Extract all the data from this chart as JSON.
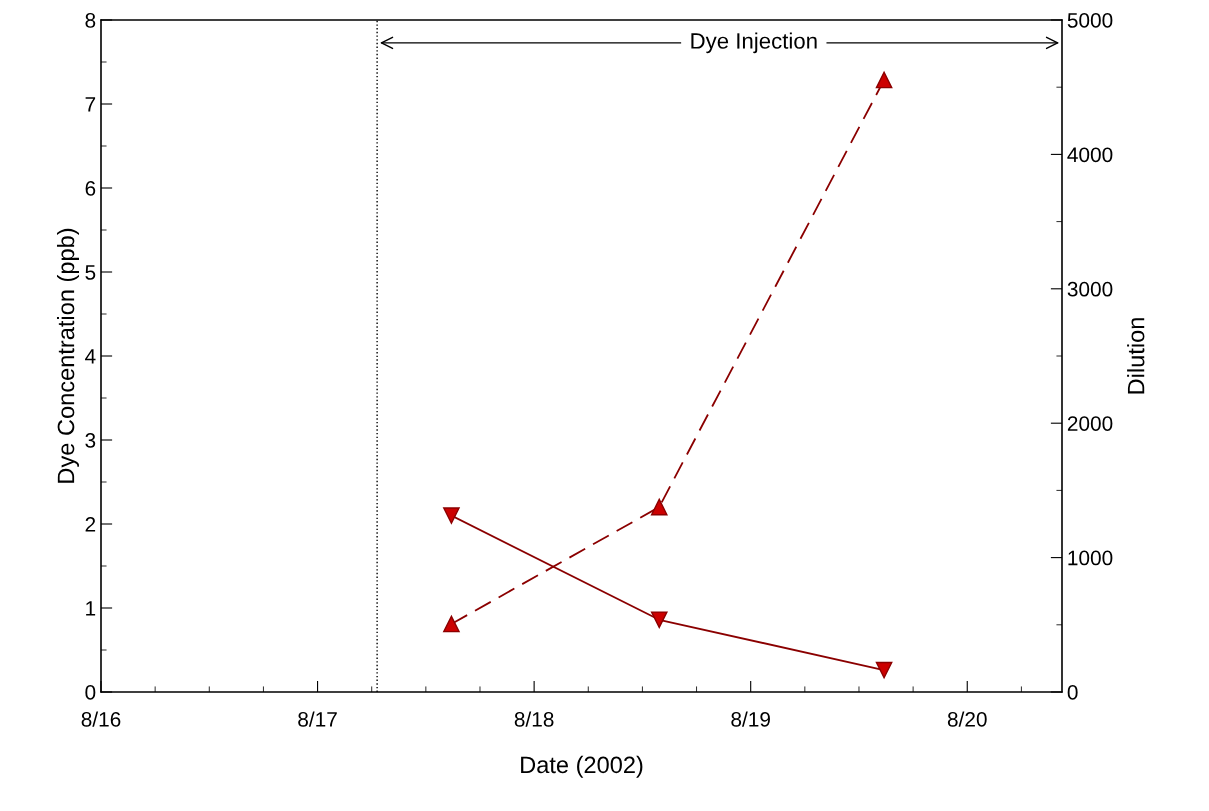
{
  "chart_data": {
    "type": "line",
    "xlabel": "Date (2002)",
    "ylabel": "Dye Concentration (ppb)",
    "y2label": "Dilution",
    "xlim": [
      "2002-08-16",
      "2002-08-20T10:30"
    ],
    "xticks": [
      {
        "value": "2002-08-16",
        "label": "8/16"
      },
      {
        "value": "2002-08-17",
        "label": "8/17"
      },
      {
        "value": "2002-08-18",
        "label": "8/18"
      },
      {
        "value": "2002-08-19",
        "label": "8/19"
      },
      {
        "value": "2002-08-20",
        "label": "8/20"
      }
    ],
    "ylim": [
      0,
      8
    ],
    "yticks": [
      0,
      1,
      2,
      3,
      4,
      5,
      6,
      7,
      8
    ],
    "y2lim": [
      0,
      5000
    ],
    "y2ticks": [
      0,
      1000,
      2000,
      3000,
      4000,
      5000
    ],
    "x": [
      "2002-08-17T14:50",
      "2002-08-18T13:52",
      "2002-08-19T14:47"
    ],
    "series": [
      {
        "color": "#cc0000",
        "values": [
          2.1,
          0.86,
          0.26
        ],
        "marker": "triangle_down",
        "line_style": "solid"
      },
      {
        "color": "#cc0000",
        "values": [
          506,
          1376,
          4554
        ],
        "axis": "y2",
        "marker": "triangle",
        "line_style": "dashed"
      }
    ],
    "ref_lines": [
      {
        "axis": "x",
        "value": "2002-08-17T06:36",
        "line_style": "dotted",
        "color": "#000000"
      }
    ],
    "annotations": [
      "Dye Injection"
    ],
    "grid": false
  }
}
